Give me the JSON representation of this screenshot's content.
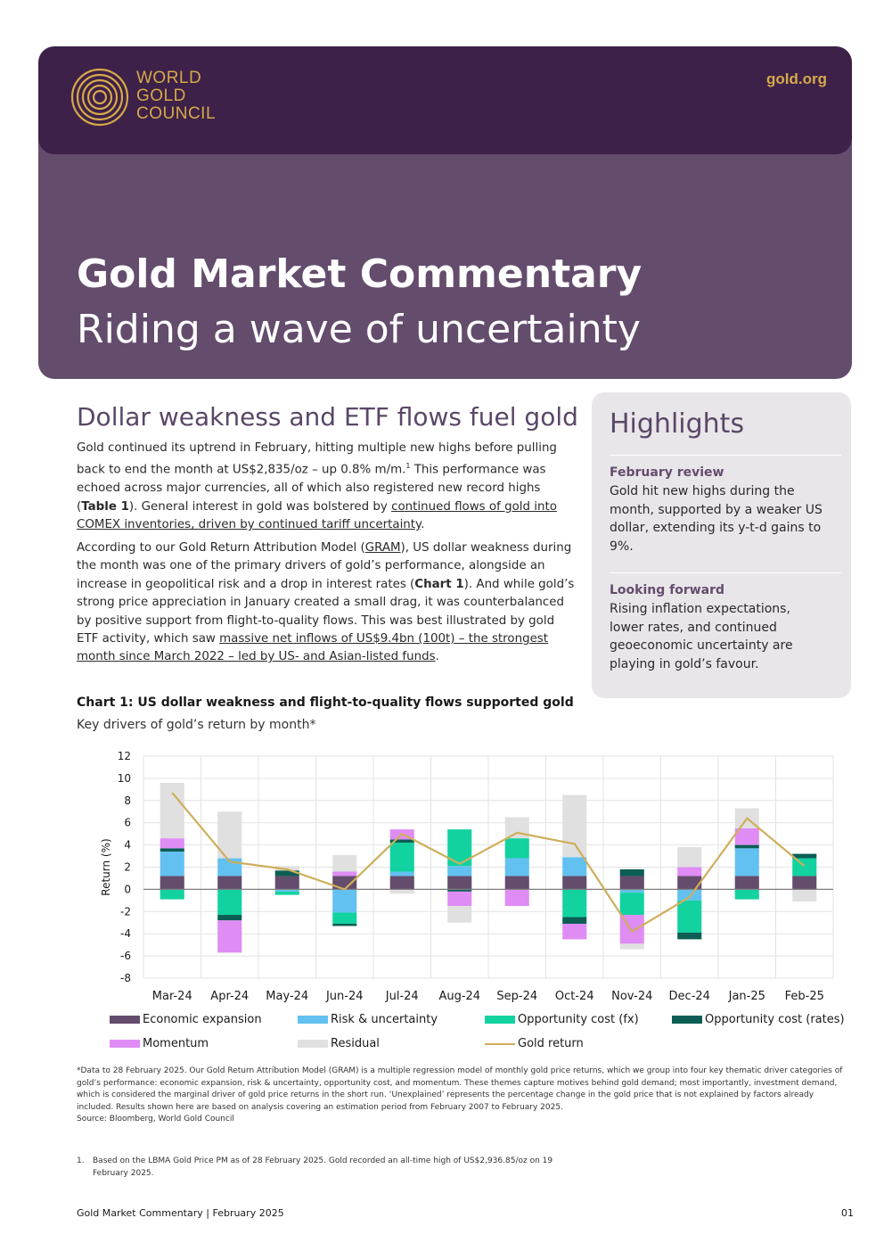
{
  "header": {
    "logo_lines": [
      "WORLD",
      "GOLD",
      "COUNCIL"
    ],
    "site": "gold.org",
    "title": "Gold Market Commentary",
    "subtitle": "Riding a wave of uncertainty"
  },
  "article": {
    "heading": "Dollar weakness and ETF flows fuel gold",
    "p1": {
      "a": "Gold continued its uptrend in February, hitting multiple new highs before pulling back to end the month at US$2,835/oz – up 0.8% m/m.",
      "sup": "1",
      "b": " This performance was echoed across major currencies, all of which also registered new record highs (",
      "ref": "Table 1",
      "c": "). General interest in gold was bolstered by ",
      "link": "continued flows of gold into COMEX inventories, driven by continued tariff uncertainty",
      "d": "."
    },
    "p2": {
      "a": "According to our Gold Return Attribution Model (",
      "ref1": "GRAM",
      "b": "), US dollar weakness during the month was one of the primary drivers of gold’s performance, alongside an increase in geopolitical risk and a drop in interest rates (",
      "ref2": "Chart 1",
      "c": "). And while gold’s strong price appreciation in January created a small drag, it was counterbalanced by positive support from flight-to-quality flows. This was best illustrated by gold ETF activity, which saw ",
      "link": "massive net inflows of US$9.4bn (100t) – the strongest month since March 2022 – led by US- and Asian-listed funds",
      "d": "."
    }
  },
  "highlights": {
    "title": "Highlights",
    "items": [
      {
        "heading": "February review",
        "text": "Gold hit new highs during the month, supported by a weaker US dollar, extending its y-t-d gains to 9%."
      },
      {
        "heading": "Looking forward",
        "text": "Rising inflation expectations, lower rates, and continued geoeconomic uncertainty are playing in gold’s favour."
      }
    ]
  },
  "chart": {
    "title": "Chart 1: US dollar weakness and flight-to-quality flows supported gold",
    "subtitle": "Key drivers of gold’s return by month*"
  },
  "chart_data": {
    "type": "bar",
    "stacked": true,
    "categories": [
      "Mar-24",
      "Apr-24",
      "May-24",
      "Jun-24",
      "Jul-24",
      "Aug-24",
      "Sep-24",
      "Oct-24",
      "Nov-24",
      "Dec-24",
      "Jan-25",
      "Feb-25"
    ],
    "ylabel": "Return (%)",
    "ylim": [
      -8,
      12
    ],
    "yticks": [
      12,
      10,
      8,
      6,
      4,
      2,
      0,
      -2,
      -4,
      -6,
      -8
    ],
    "grid": true,
    "legend_position": "bottom",
    "series": [
      {
        "name": "Economic expansion",
        "color": "#644c6d",
        "values": [
          1.2,
          1.2,
          1.2,
          1.2,
          1.2,
          1.2,
          1.2,
          1.2,
          1.2,
          1.2,
          1.2,
          1.2
        ]
      },
      {
        "name": "Risk & uncertainty",
        "color": "#62c1f0",
        "values": [
          2.2,
          1.6,
          -0.2,
          -2.1,
          0.4,
          0.9,
          1.6,
          1.7,
          -0.3,
          -1.0,
          2.5,
          0.0
        ]
      },
      {
        "name": "Opportunity cost (fx)",
        "color": "#12d2a0",
        "values": [
          -0.9,
          -2.3,
          -0.3,
          -1.0,
          2.6,
          3.3,
          1.8,
          -2.5,
          -2.0,
          -2.9,
          -0.9,
          1.6
        ]
      },
      {
        "name": "Opportunity cost (rates)",
        "color": "#0c5e54",
        "values": [
          0.3,
          -0.5,
          0.5,
          -0.2,
          0.3,
          -0.2,
          0.0,
          -0.6,
          0.6,
          -0.6,
          0.3,
          0.4
        ]
      },
      {
        "name": "Momentum",
        "color": "#df8cf4",
        "values": [
          0.9,
          -2.9,
          0.0,
          0.4,
          0.9,
          -1.3,
          -1.5,
          -1.4,
          -2.6,
          0.8,
          1.5,
          0.0
        ]
      },
      {
        "name": "Residual",
        "color": "#e0e0e0",
        "values": [
          5.0,
          4.2,
          0.4,
          1.5,
          -0.4,
          -1.5,
          1.9,
          5.6,
          -0.5,
          1.8,
          1.8,
          -1.1
        ]
      }
    ],
    "line": {
      "name": "Gold return",
      "color": "#cfae5b",
      "values": [
        8.7,
        2.5,
        1.8,
        0.0,
        5.0,
        2.3,
        5.1,
        4.1,
        -3.8,
        -0.7,
        6.4,
        2.1
      ]
    }
  },
  "footnote": {
    "text": "*Data to 28 February 2025. Our Gold Return Attribution Model (GRAM) is a multiple regression model of monthly gold price returns, which we group into four key thematic driver categories of gold’s performance: economic expansion, risk & uncertainty, opportunity cost, and momentum. These themes capture motives behind gold demand; most importantly, investment demand, which is considered the marginal driver of gold price returns in the short run. ‘Unexplained’ represents the percentage change in the gold price that is not explained by factors already included. Results shown here are based on analysis covering an estimation period from February 2007 to February 2025.",
    "source": "Source: Bloomberg, World Gold Council",
    "fn1_num": "1.",
    "fn1_text": "Based on the LBMA Gold Price PM as of 28 February 2025. Gold recorded an all-time high of US$2,936.85/oz on 19 February 2025."
  },
  "footer": {
    "left": "Gold Market Commentary | February 2025",
    "page": "01"
  }
}
